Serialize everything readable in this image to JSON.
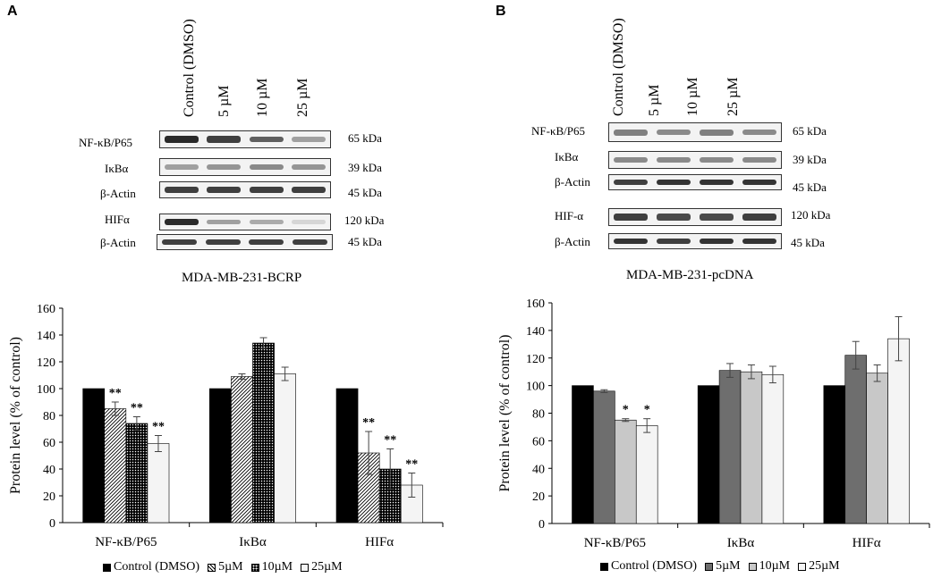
{
  "panels": [
    {
      "letter": "A",
      "lanes": [
        "Control (DMSO)",
        "5 µM",
        "10 µM",
        "25 µM"
      ],
      "blots": [
        {
          "label": "NF-κB/P65",
          "kda": "65 kDa",
          "intensity": [
            0.9,
            0.8,
            0.65,
            0.35
          ]
        },
        {
          "label": "IκBα",
          "kda": "39 kDa",
          "intensity": [
            0.35,
            0.4,
            0.45,
            0.4
          ]
        },
        {
          "label": "β-Actin",
          "kda": "45 kDa",
          "intensity": [
            0.8,
            0.8,
            0.8,
            0.8
          ]
        },
        {
          "label": "HIFα",
          "kda": "120 kDa",
          "intensity": [
            0.9,
            0.35,
            0.3,
            0.1
          ]
        },
        {
          "label": "β-Actin",
          "kda": "45 kDa",
          "intensity": [
            0.8,
            0.8,
            0.8,
            0.8
          ]
        }
      ],
      "blot_title": "MDA-MB-231-BCRP"
    },
    {
      "letter": "B",
      "lanes": [
        "Control (DMSO)",
        "5 µM",
        "10 µM",
        "25 µM"
      ],
      "blots": [
        {
          "label": "NF-κB/P65",
          "kda": "65 kDa",
          "intensity": [
            0.5,
            0.45,
            0.5,
            0.45
          ]
        },
        {
          "label": "IκBα",
          "kda": "39 kDa",
          "intensity": [
            0.45,
            0.45,
            0.45,
            0.45
          ]
        },
        {
          "label": "β-Actin",
          "kda": "45 kDa",
          "intensity": [
            0.8,
            0.85,
            0.85,
            0.85
          ]
        },
        {
          "label": "HIF-α",
          "kda": "120 kDa",
          "intensity": [
            0.8,
            0.75,
            0.75,
            0.8
          ]
        },
        {
          "label": "β-Actin",
          "kda": "45 kDa",
          "intensity": [
            0.85,
            0.8,
            0.85,
            0.85
          ]
        }
      ],
      "blot_title": "MDA-MB-231-pcDNA"
    }
  ],
  "chart_data": [
    {
      "type": "bar",
      "title": "",
      "xlabel": "",
      "ylabel": "Protein level  (% of control)",
      "ylim": [
        0,
        160
      ],
      "yticks": [
        0,
        20,
        40,
        60,
        80,
        100,
        120,
        140,
        160
      ],
      "categories": [
        "NF-κB/P65",
        "IκBα",
        "HIFα"
      ],
      "series": [
        {
          "name": "Control (DMSO)",
          "fill": "black",
          "values": [
            100,
            100,
            100
          ],
          "errors": [
            0,
            0,
            0
          ],
          "sig": [
            "",
            "",
            ""
          ]
        },
        {
          "name": "5µM",
          "fill": "hatch",
          "values": [
            85,
            109,
            52
          ],
          "errors": [
            5,
            2,
            16
          ],
          "sig": [
            "**",
            "",
            "**"
          ]
        },
        {
          "name": "10µM",
          "fill": "dots",
          "values": [
            74,
            134,
            40
          ],
          "errors": [
            5,
            4,
            15
          ],
          "sig": [
            "**",
            "",
            "**"
          ]
        },
        {
          "name": "25µM",
          "fill": "white",
          "values": [
            59,
            111,
            28
          ],
          "errors": [
            6,
            5,
            9
          ],
          "sig": [
            "**",
            "",
            "**"
          ]
        }
      ]
    },
    {
      "type": "bar",
      "title": "",
      "xlabel": "",
      "ylabel": "Protein level  (% of control)",
      "ylim": [
        0,
        160
      ],
      "yticks": [
        0,
        20,
        40,
        60,
        80,
        100,
        120,
        140,
        160
      ],
      "categories": [
        "NF-κB/P65",
        "IκBα",
        "HIFα"
      ],
      "series": [
        {
          "name": "Control (DMSO)",
          "fill": "black",
          "values": [
            100,
            100,
            100
          ],
          "errors": [
            0,
            0,
            0
          ],
          "sig": [
            "",
            "",
            ""
          ]
        },
        {
          "name": "5µM",
          "fill": "dgray",
          "values": [
            96,
            111,
            122
          ],
          "errors": [
            1,
            5,
            10
          ],
          "sig": [
            "",
            "",
            ""
          ]
        },
        {
          "name": "10µM",
          "fill": "lgray",
          "values": [
            75,
            110,
            109
          ],
          "errors": [
            1,
            5,
            6
          ],
          "sig": [
            "*",
            "",
            ""
          ]
        },
        {
          "name": "25µM",
          "fill": "white",
          "values": [
            71,
            108,
            134
          ],
          "errors": [
            5,
            6,
            16
          ],
          "sig": [
            "*",
            "",
            ""
          ]
        }
      ]
    }
  ]
}
